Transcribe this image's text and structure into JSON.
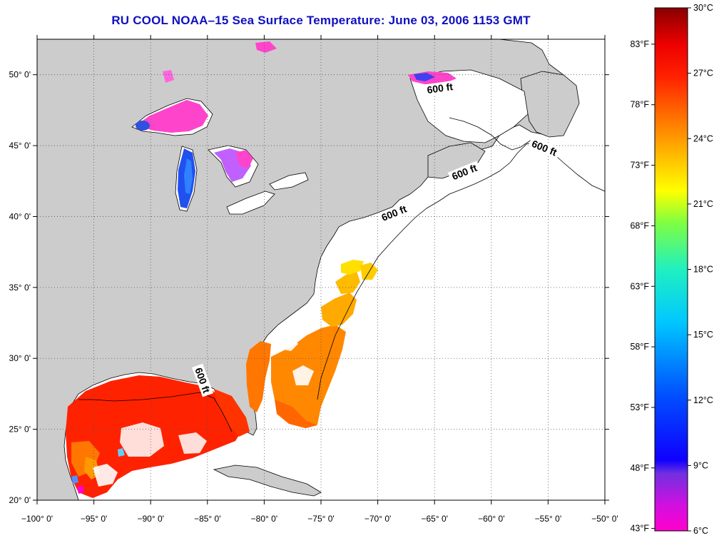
{
  "title": "RU COOL  NOAA–15  Sea Surface Temperature:  June 03, 2006 1153 GMT",
  "map": {
    "lon_range": [
      -100,
      -50
    ],
    "lat_range": [
      20,
      52.5
    ],
    "lon_ticks": [
      {
        "value": -100,
        "label": "−100° 0'"
      },
      {
        "value": -95,
        "label": "−95° 0'"
      },
      {
        "value": -90,
        "label": "−90° 0'"
      },
      {
        "value": -85,
        "label": "−85° 0'"
      },
      {
        "value": -80,
        "label": "−80° 0'"
      },
      {
        "value": -75,
        "label": "−75° 0'"
      },
      {
        "value": -70,
        "label": "−70° 0'"
      },
      {
        "value": -65,
        "label": "−65° 0'"
      },
      {
        "value": -60,
        "label": "−60° 0'"
      },
      {
        "value": -55,
        "label": "−55° 0'"
      },
      {
        "value": -50,
        "label": "−50° 0'"
      }
    ],
    "lat_ticks": [
      {
        "value": 20,
        "label": "20° 0'"
      },
      {
        "value": 25,
        "label": "25° 0'"
      },
      {
        "value": 30,
        "label": "30° 0'"
      },
      {
        "value": 35,
        "label": "35° 0'"
      },
      {
        "value": 40,
        "label": "40° 0'"
      },
      {
        "value": 45,
        "label": "45° 0'"
      },
      {
        "value": 50,
        "label": "50° 0'"
      }
    ],
    "contour_labels": [
      {
        "text": "600 ft",
        "lon": -64.5,
        "lat": 48.9,
        "angle": -8
      },
      {
        "text": "600 ft",
        "lon": -55.4,
        "lat": 44.7,
        "angle": 22
      },
      {
        "text": "600 ft",
        "lon": -62.3,
        "lat": 43.0,
        "angle": -22
      },
      {
        "text": "600 ft",
        "lon": -68.5,
        "lat": 40.1,
        "angle": -22
      },
      {
        "text": "600 ft",
        "lon": -85.6,
        "lat": 28.4,
        "angle": 70
      }
    ],
    "colors": {
      "land": "#cccccc",
      "ocean": "#ffffff",
      "grid": "#555555"
    }
  },
  "colorbar": {
    "min_c": 6,
    "max_c": 30,
    "celsius_labels": [
      {
        "value": 30,
        "label": "30°C"
      },
      {
        "value": 27,
        "label": "27°C"
      },
      {
        "value": 24,
        "label": "24°C"
      },
      {
        "value": 21,
        "label": "21°C"
      },
      {
        "value": 18,
        "label": "18°C"
      },
      {
        "value": 15,
        "label": "15°C"
      },
      {
        "value": 12,
        "label": "12°C"
      },
      {
        "value": 9,
        "label": "9°C"
      },
      {
        "value": 6,
        "label": "6°C"
      }
    ],
    "fahrenheit_labels": [
      {
        "value": 83,
        "label": "83°F"
      },
      {
        "value": 78,
        "label": "78°F"
      },
      {
        "value": 73,
        "label": "73°F"
      },
      {
        "value": 68,
        "label": "68°F"
      },
      {
        "value": 63,
        "label": "63°F"
      },
      {
        "value": 58,
        "label": "58°F"
      },
      {
        "value": 53,
        "label": "53°F"
      },
      {
        "value": 48,
        "label": "48°F"
      },
      {
        "value": 43,
        "label": "43°F"
      }
    ],
    "gradient": [
      "#ff00cc",
      "#8030e0",
      "#0000ff",
      "#0090ff",
      "#00e0ff",
      "#40ff80",
      "#ffff00",
      "#ff9900",
      "#ff2000",
      "#900000"
    ]
  }
}
